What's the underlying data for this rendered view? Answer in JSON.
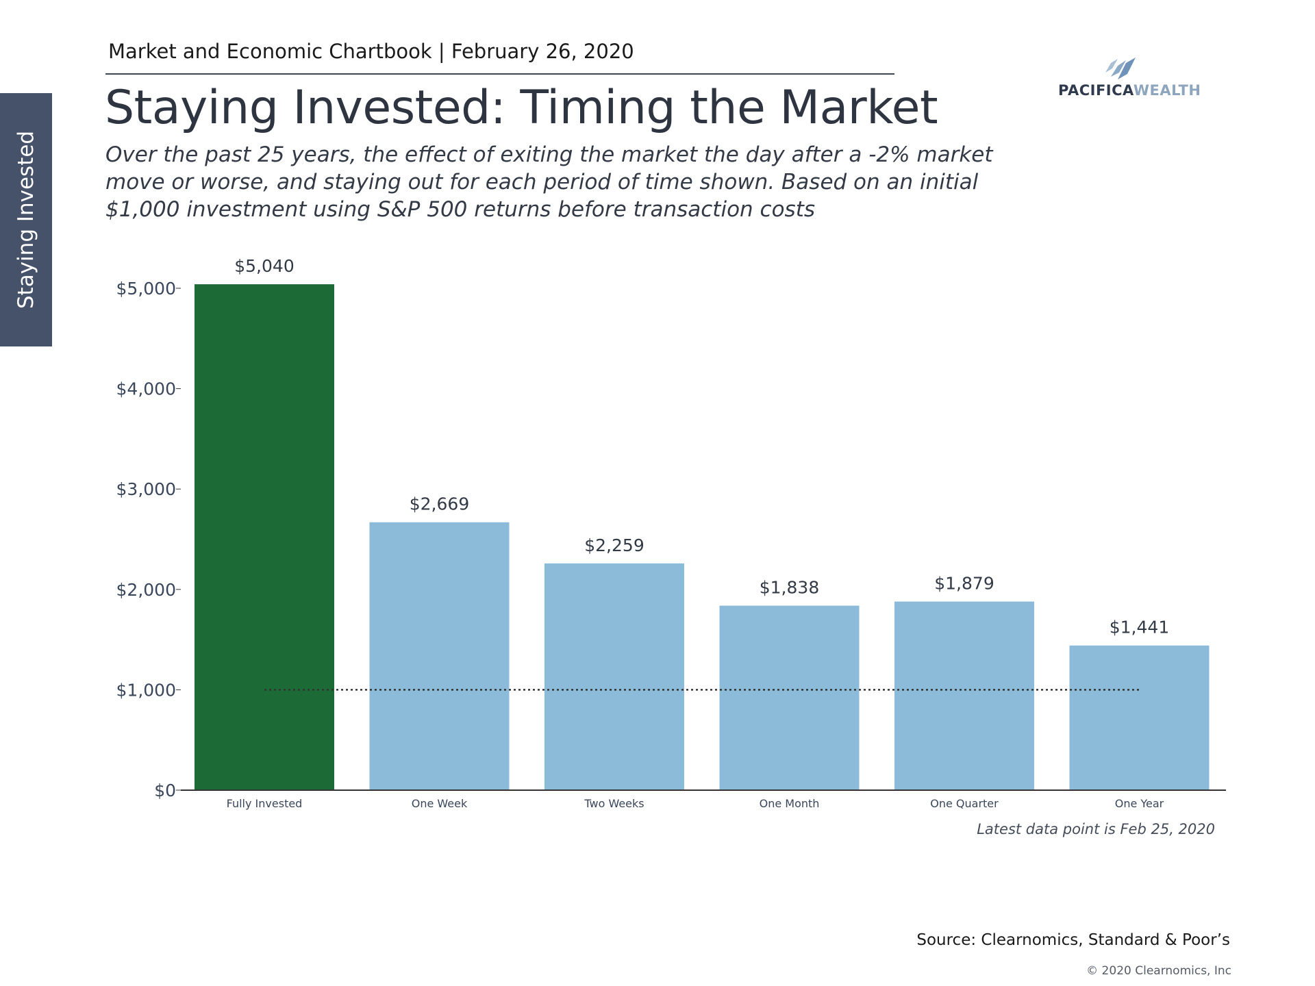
{
  "side_tab": {
    "label": "Staying Invested"
  },
  "header": {
    "chartbook": "Market and Economic Chartbook | February 26, 2020"
  },
  "title": "Staying Invested: Timing the Market",
  "subtitle": "Over the past 25 years, the effect of exiting the market the day after a -2% market move or worse, and staying out for each period of time shown. Based on an initial $1,000 investment using S&P 500 returns before transaction costs",
  "logo": {
    "part1": "PACIFICA",
    "part2": "WEALTH"
  },
  "footer": {
    "note": "Latest data point is Feb 25, 2020",
    "source": "Source: Clearnomics, Standard & Poor’s",
    "copyright": "© 2020 Clearnomics, Inc"
  },
  "colors": {
    "highlight_bar": "#1c6b36",
    "bar": "#8bbbd8",
    "axis": "#333333",
    "label": "#3a4659"
  },
  "chart_data": {
    "type": "bar",
    "categories": [
      "Fully Invested",
      "One Week",
      "Two Weeks",
      "One Month",
      "One Quarter",
      "One Year"
    ],
    "values": [
      5040,
      2669,
      2259,
      1838,
      1879,
      1441
    ],
    "data_labels": [
      "$5,040",
      "$2,669",
      "$2,259",
      "$1,838",
      "$1,879",
      "$1,441"
    ],
    "ylim": [
      0,
      5000
    ],
    "yticks": [
      0,
      1000,
      2000,
      3000,
      4000,
      5000
    ],
    "ytick_labels": [
      "$0",
      "$1,000",
      "$2,000",
      "$3,000",
      "$4,000",
      "$5,000"
    ],
    "reference_line": {
      "value": 1000,
      "style": "dotted"
    },
    "highlight_index": 0,
    "grid": false,
    "legend": "none"
  }
}
